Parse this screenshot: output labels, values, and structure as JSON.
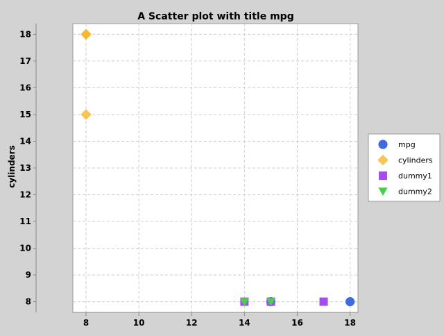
{
  "chart_data": {
    "type": "scatter",
    "title": "A Scatter plot with title mpg",
    "xlabel": "",
    "ylabel": "cylinders",
    "xlim": [
      7.5,
      18.3
    ],
    "ylim": [
      7.6,
      18.4
    ],
    "xticks": [
      8,
      10,
      12,
      14,
      16,
      18
    ],
    "yticks": [
      8,
      9,
      10,
      11,
      12,
      13,
      14,
      15,
      16,
      17,
      18
    ],
    "xtick_labels": [
      "8",
      "10",
      "12",
      "14",
      "16",
      "18"
    ],
    "ytick_labels": [
      "8",
      "9",
      "10",
      "11",
      "12",
      "13",
      "14",
      "15",
      "16",
      "17",
      "18"
    ],
    "grid": true,
    "legend_position": "right",
    "series": [
      {
        "name": "mpg",
        "marker": "circle",
        "color": "#4169e1",
        "points": [
          [
            18,
            8
          ],
          [
            15,
            8
          ]
        ]
      },
      {
        "name": "cylinders",
        "marker": "diamond",
        "color": "#f5b82e",
        "points": [
          [
            8,
            18
          ],
          [
            8,
            15
          ]
        ]
      },
      {
        "name": "dummy1",
        "marker": "square",
        "color": "#a64bf4",
        "points": [
          [
            17,
            8
          ],
          [
            14,
            8
          ],
          [
            15,
            8
          ]
        ]
      },
      {
        "name": "dummy2",
        "marker": "triangle-down",
        "color": "#47d147",
        "points": [
          [
            14,
            8
          ],
          [
            15,
            8
          ]
        ]
      }
    ]
  }
}
